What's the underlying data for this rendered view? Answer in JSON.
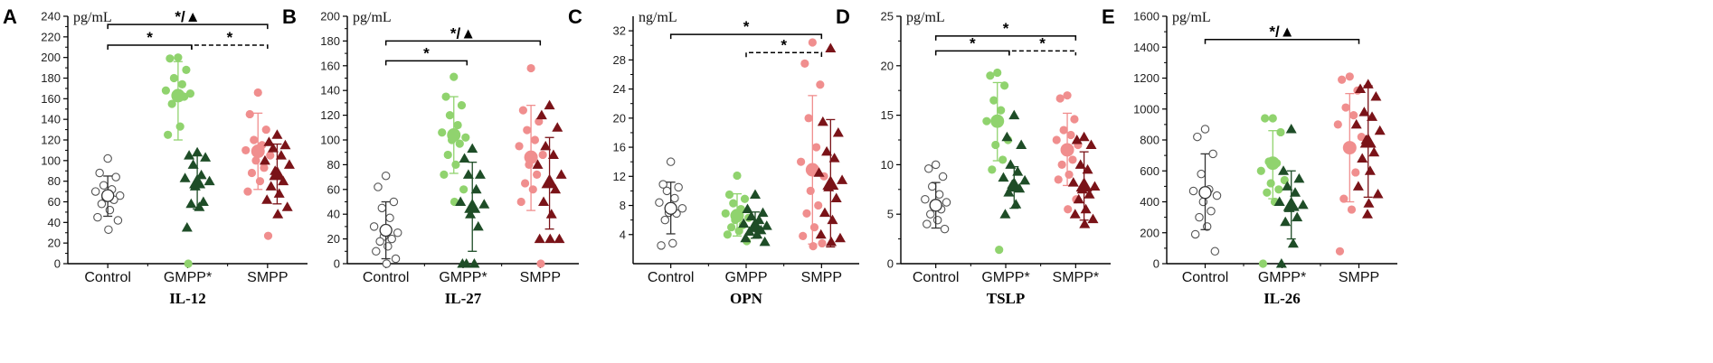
{
  "colors": {
    "control": "#ffffff",
    "control_stroke": "#555555",
    "gmpp_circle": "#90d36e",
    "gmpp_triangle": "#1e4d27",
    "smpp_circle": "#f08e8e",
    "smpp_triangle": "#7a1318",
    "axis": "#000000"
  },
  "chart_data": [
    {
      "type": "scatter",
      "letter": "A",
      "title": "IL-12",
      "unit": "pg/mL",
      "categories": [
        "Control",
        "GMPP*",
        "SMPP"
      ],
      "ylim": [
        0,
        240
      ],
      "yticks": [
        0,
        20,
        40,
        60,
        80,
        100,
        120,
        140,
        160,
        180,
        200,
        220,
        240
      ],
      "series": [
        {
          "name": "Control",
          "cat": 0,
          "offset": 0,
          "shape": "open-circle",
          "values": [
            102,
            88,
            84,
            76,
            72,
            70,
            66,
            64,
            62,
            58,
            52,
            45,
            42,
            33
          ],
          "mean": 66,
          "sd_low": 46,
          "sd_high": 85
        },
        {
          "name": "GMPP circles",
          "cat": 1,
          "offset": -0.12,
          "shape": "circle",
          "color": "gmpp_circle",
          "values": [
            200,
            199,
            188,
            180,
            174,
            168,
            165,
            164,
            162,
            155,
            133,
            125,
            0
          ],
          "mean": 163,
          "sd_low": 120,
          "sd_high": 196
        },
        {
          "name": "GMPP triangles",
          "cat": 1,
          "offset": 0.12,
          "shape": "triangle",
          "color": "gmpp_triangle",
          "values": [
            108,
            105,
            103,
            96,
            86,
            83,
            80,
            75,
            60,
            58,
            55,
            35
          ],
          "mean": 79,
          "sd_low": 53,
          "sd_high": 105
        },
        {
          "name": "SMPP circles",
          "cat": 2,
          "offset": -0.12,
          "shape": "circle",
          "color": "smpp_circle",
          "values": [
            166,
            145,
            130,
            120,
            115,
            110,
            105,
            100,
            93,
            88,
            80,
            70,
            27
          ],
          "mean": 109,
          "sd_low": 72,
          "sd_high": 146
        },
        {
          "name": "SMPP triangles",
          "cat": 2,
          "offset": 0.12,
          "shape": "triangle",
          "color": "smpp_triangle",
          "values": [
            125,
            118,
            115,
            112,
            105,
            100,
            96,
            90,
            80,
            75,
            68,
            62,
            55,
            48
          ],
          "mean": 87,
          "sd_low": 58,
          "sd_high": 116
        }
      ],
      "brackets": [
        {
          "from": 0,
          "to": 2,
          "y": 232,
          "label": "*/▲",
          "dashed": false
        },
        {
          "from": 0,
          "to": 1.05,
          "y": 212,
          "label": "*",
          "dashed": false
        },
        {
          "from": 1.05,
          "to": 2,
          "y": 212,
          "label": "*",
          "dashed": true
        }
      ]
    },
    {
      "type": "scatter",
      "letter": "B",
      "title": "IL-27",
      "unit": "pg/mL",
      "categories": [
        "Control",
        "GMPP*",
        "SMPP"
      ],
      "ylim": [
        0,
        200
      ],
      "yticks": [
        0,
        20,
        40,
        60,
        80,
        100,
        120,
        140,
        160,
        180,
        200
      ],
      "series": [
        {
          "name": "Control",
          "cat": 0,
          "offset": 0,
          "shape": "open-circle",
          "values": [
            71,
            62,
            50,
            45,
            37,
            30,
            25,
            22,
            20,
            18,
            14,
            10,
            4,
            0
          ],
          "mean": 27,
          "sd_low": 4,
          "sd_high": 50
        },
        {
          "name": "GMPP circles",
          "cat": 1,
          "offset": -0.12,
          "shape": "circle",
          "color": "gmpp_circle",
          "values": [
            151,
            135,
            128,
            120,
            112,
            106,
            102,
            100,
            97,
            88,
            80,
            72,
            60,
            50
          ],
          "mean": 104,
          "sd_low": 73,
          "sd_high": 135
        },
        {
          "name": "GMPP triangles",
          "cat": 1,
          "offset": 0.12,
          "shape": "triangle",
          "color": "gmpp_triangle",
          "values": [
            93,
            85,
            72,
            72,
            60,
            50,
            48,
            40,
            30,
            0,
            0,
            0
          ],
          "mean": 46,
          "sd_low": 10,
          "sd_high": 82
        },
        {
          "name": "SMPP circles",
          "cat": 2,
          "offset": -0.12,
          "shape": "circle",
          "color": "smpp_circle",
          "values": [
            158,
            124,
            115,
            108,
            100,
            95,
            88,
            80,
            72,
            65,
            60,
            50,
            0
          ],
          "mean": 86,
          "sd_low": 43,
          "sd_high": 128
        },
        {
          "name": "SMPP triangles",
          "cat": 2,
          "offset": 0.12,
          "shape": "triangle",
          "color": "smpp_triangle",
          "values": [
            128,
            120,
            110,
            95,
            88,
            80,
            72,
            65,
            60,
            50,
            40,
            20,
            20,
            20
          ],
          "mean": 66,
          "sd_low": 28,
          "sd_high": 102
        }
      ],
      "brackets": [
        {
          "from": 0,
          "to": 2,
          "y": 180,
          "label": "*/▲",
          "dashed": false
        },
        {
          "from": 0,
          "to": 1.05,
          "y": 164,
          "label": "*",
          "dashed": false
        }
      ]
    },
    {
      "type": "scatter",
      "letter": "C",
      "title": "OPN",
      "unit": "ng/mL",
      "categories": [
        "Control",
        "GMPP",
        "SMPP"
      ],
      "ylim": [
        0,
        34
      ],
      "yticks": [
        4,
        8,
        12,
        16,
        20,
        24,
        28,
        32
      ],
      "series": [
        {
          "name": "Control",
          "cat": 0,
          "offset": 0,
          "shape": "open-circle",
          "values": [
            14,
            10.9,
            10.5,
            10,
            9,
            8.4,
            7.6,
            7,
            6.9,
            6,
            2.8,
            2.5
          ],
          "mean": 7.6,
          "sd_low": 4.1,
          "sd_high": 11.2
        },
        {
          "name": "GMPP circles",
          "cat": 1,
          "offset": -0.12,
          "shape": "circle",
          "color": "gmpp_circle",
          "values": [
            12.1,
            9.5,
            8.9,
            8.3,
            7.5,
            6.9,
            6.3,
            6,
            5.3,
            5,
            4.5,
            4,
            3.1
          ],
          "mean": 6.6,
          "sd_low": 3.8,
          "sd_high": 9.6
        },
        {
          "name": "GMPP triangles",
          "cat": 1,
          "offset": 0.12,
          "shape": "triangle",
          "color": "gmpp_triangle",
          "values": [
            9.5,
            7.5,
            7,
            6.5,
            6,
            5.5,
            5.2,
            5,
            4.6,
            4.4,
            4,
            3.5,
            3
          ],
          "mean": 5.2,
          "sd_low": 3.5,
          "sd_high": 7.1
        },
        {
          "name": "SMPP circles",
          "cat": 2,
          "offset": -0.12,
          "shape": "circle",
          "color": "smpp_circle",
          "values": [
            30.4,
            27.5,
            24.6,
            20,
            16,
            14,
            12,
            10,
            8,
            6.9,
            5,
            3.8,
            2.8,
            2.4
          ],
          "mean": 12.9,
          "sd_low": 2.7,
          "sd_high": 23.1
        },
        {
          "name": "SMPP triangles",
          "cat": 2,
          "offset": 0.12,
          "shape": "triangle",
          "color": "smpp_triangle",
          "values": [
            29.6,
            19.5,
            18,
            15.4,
            14.5,
            12.5,
            11.5,
            10.5,
            9,
            7,
            6,
            4,
            3.5,
            3
          ],
          "mean": 11,
          "sd_low": 2.3,
          "sd_high": 19.8
        }
      ],
      "brackets": [
        {
          "from": 0,
          "to": 2,
          "y": 31.5,
          "label": "*",
          "dashed": false
        },
        {
          "from": 1,
          "to": 2,
          "y": 29,
          "label": "*",
          "dashed": true
        }
      ]
    },
    {
      "type": "scatter",
      "letter": "D",
      "title": "TSLP",
      "unit": "pg/mL",
      "categories": [
        "Control",
        "GMPP*",
        "SMPP*"
      ],
      "ylim": [
        0,
        25
      ],
      "yticks": [
        0,
        5,
        10,
        15,
        20,
        25
      ],
      "series": [
        {
          "name": "Control",
          "cat": 0,
          "offset": 0,
          "shape": "open-circle",
          "values": [
            10,
            9.6,
            8.8,
            7.8,
            7,
            6.5,
            6.2,
            6,
            5.5,
            5,
            4.4,
            4,
            3.5
          ],
          "mean": 5.9,
          "sd_low": 3.6,
          "sd_high": 8.2
        },
        {
          "name": "GMPP circles",
          "cat": 1,
          "offset": -0.12,
          "shape": "circle",
          "color": "gmpp_circle",
          "values": [
            19.3,
            19,
            18,
            16.5,
            15.5,
            14.4,
            12.5,
            12,
            10.5,
            9.5,
            1.4
          ],
          "mean": 14.4,
          "sd_low": 10.4,
          "sd_high": 18.3
        },
        {
          "name": "GMPP triangles",
          "cat": 1,
          "offset": 0.12,
          "shape": "triangle",
          "color": "gmpp_triangle",
          "values": [
            15,
            12.8,
            12,
            10,
            9.3,
            8.7,
            8.4,
            8,
            7.6,
            7.2,
            6,
            5
          ],
          "mean": 7.9,
          "sd_low": 5.6,
          "sd_high": 9.8
        },
        {
          "name": "SMPP circles",
          "cat": 2,
          "offset": -0.12,
          "shape": "circle",
          "color": "smpp_circle",
          "values": [
            17,
            16.7,
            14.6,
            13.5,
            13,
            12.5,
            12,
            11.4,
            10.5,
            10,
            9,
            8.5,
            6.5,
            5.5
          ],
          "mean": 11.5,
          "sd_low": 7.9,
          "sd_high": 15.2
        },
        {
          "name": "SMPP triangles",
          "cat": 2,
          "offset": 0.12,
          "shape": "triangle",
          "color": "smpp_triangle",
          "values": [
            12.8,
            12.5,
            12,
            10,
            9.5,
            8.2,
            7.8,
            7.5,
            7,
            6.5,
            5.5,
            5,
            4.5,
            4
          ],
          "mean": 7.9,
          "sd_low": 4.4,
          "sd_high": 11.3
        }
      ],
      "brackets": [
        {
          "from": 0,
          "to": 2,
          "y": 23,
          "label": "*",
          "dashed": false
        },
        {
          "from": 0,
          "to": 1.05,
          "y": 21.5,
          "label": "*",
          "dashed": false
        },
        {
          "from": 1.05,
          "to": 2,
          "y": 21.5,
          "label": "*",
          "dashed": true
        }
      ]
    },
    {
      "type": "scatter",
      "letter": "E",
      "title": "IL-26",
      "unit": "pg/mL",
      "categories": [
        "Control",
        "GMPP*",
        "SMPP"
      ],
      "ylim": [
        0,
        1600
      ],
      "yticks": [
        0,
        200,
        400,
        600,
        800,
        1000,
        1200,
        1400,
        1600
      ],
      "series": [
        {
          "name": "Control",
          "cat": 0,
          "offset": 0,
          "shape": "open-circle",
          "values": [
            870,
            820,
            710,
            580,
            480,
            470,
            440,
            400,
            340,
            300,
            240,
            190,
            80
          ],
          "mean": 460,
          "sd_low": 220,
          "sd_high": 710
        },
        {
          "name": "GMPP circles",
          "cat": 1,
          "offset": -0.12,
          "shape": "circle",
          "color": "gmpp_circle",
          "values": [
            940,
            940,
            850,
            660,
            650,
            600,
            540,
            520,
            480,
            460,
            400,
            0
          ],
          "mean": 650,
          "sd_low": 420,
          "sd_high": 860
        },
        {
          "name": "GMPP triangles",
          "cat": 1,
          "offset": 0.12,
          "shape": "triangle",
          "color": "gmpp_triangle",
          "values": [
            870,
            600,
            550,
            500,
            460,
            400,
            380,
            360,
            300,
            270,
            130,
            0
          ],
          "mean": 380,
          "sd_low": 160,
          "sd_high": 600
        },
        {
          "name": "SMPP circles",
          "cat": 2,
          "offset": -0.12,
          "shape": "circle",
          "color": "smpp_circle",
          "values": [
            1210,
            1190,
            1120,
            1010,
            960,
            900,
            820,
            750,
            590,
            420,
            350,
            80
          ],
          "mean": 750,
          "sd_low": 400,
          "sd_high": 1100
        },
        {
          "name": "SMPP triangles",
          "cat": 2,
          "offset": 0.12,
          "shape": "triangle",
          "color": "smpp_triangle",
          "values": [
            1160,
            1130,
            1080,
            980,
            950,
            900,
            860,
            800,
            720,
            680,
            600,
            500,
            450,
            390,
            320
          ],
          "mean": 790,
          "sd_low": 430,
          "sd_high": 1150
        }
      ],
      "brackets": [
        {
          "from": 0,
          "to": 2,
          "y": 1450,
          "label": "*/▲",
          "dashed": false
        }
      ]
    }
  ]
}
